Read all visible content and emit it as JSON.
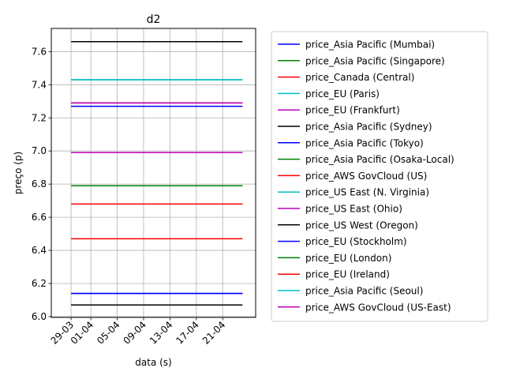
{
  "chart_data": {
    "type": "line",
    "title": "d2",
    "xlabel": "data (s)",
    "ylabel": "preço (p)",
    "ylim": [
      5.995,
      7.74
    ],
    "xlim": [
      "2023-03-26",
      "2023-04-26"
    ],
    "grid": true,
    "legend_position": "outside-right",
    "x_ticks": [
      {
        "date": "2023-03-29",
        "label": "29-03"
      },
      {
        "date": "2023-04-01",
        "label": "01-04"
      },
      {
        "date": "2023-04-05",
        "label": "05-04"
      },
      {
        "date": "2023-04-09",
        "label": "09-04"
      },
      {
        "date": "2023-04-13",
        "label": "13-04"
      },
      {
        "date": "2023-04-17",
        "label": "17-04"
      },
      {
        "date": "2023-04-21",
        "label": "21-04"
      }
    ],
    "y_ticks": [
      "6.0",
      "6.2",
      "6.4",
      "6.6",
      "6.8",
      "7.0",
      "7.2",
      "7.4",
      "7.6"
    ],
    "x": [
      "2023-03-29",
      "2023-04-24"
    ],
    "series": [
      {
        "name": "price_Asia Pacific (Mumbai)",
        "color": "#0000ff",
        "values": [
          7.27,
          7.27
        ]
      },
      {
        "name": "price_Asia Pacific (Singapore)",
        "color": "#008000",
        "values": [
          6.79,
          6.79
        ]
      },
      {
        "name": "price_Canada (Central)",
        "color": "#ff0000",
        "values": [
          7.29,
          7.29
        ]
      },
      {
        "name": "price_EU (Paris)",
        "color": "#00bfbf",
        "values": [
          7.43,
          7.43
        ]
      },
      {
        "name": "price_EU (Frankfurt)",
        "color": "#bf00bf",
        "values": [
          7.29,
          7.29
        ]
      },
      {
        "name": "price_Asia Pacific (Sydney)",
        "color": "#000000",
        "values": [
          7.66,
          7.66
        ]
      },
      {
        "name": "price_Asia Pacific (Tokyo)",
        "color": "#0000ff",
        "values": [
          6.14,
          6.14
        ]
      },
      {
        "name": "price_Asia Pacific (Osaka-Local)",
        "color": "#008000",
        "values": [
          6.79,
          6.79
        ]
      },
      {
        "name": "price_AWS GovCloud (US)",
        "color": "#ff0000",
        "values": [
          6.68,
          6.68
        ]
      },
      {
        "name": "price_US East (N. Virginia)",
        "color": "#00bfbf",
        "values": [
          6.79,
          6.79
        ]
      },
      {
        "name": "price_US East (Ohio)",
        "color": "#bf00bf",
        "values": [
          6.99,
          6.99
        ]
      },
      {
        "name": "price_US West (Oregon)",
        "color": "#000000",
        "values": [
          6.07,
          6.07
        ]
      },
      {
        "name": "price_EU (Stockholm)",
        "color": "#0000ff",
        "values": [
          6.14,
          6.14
        ]
      },
      {
        "name": "price_EU (London)",
        "color": "#008000",
        "values": [
          6.79,
          6.79
        ]
      },
      {
        "name": "price_EU (Ireland)",
        "color": "#ff0000",
        "values": [
          6.47,
          6.47
        ]
      },
      {
        "name": "price_Asia Pacific (Seoul)",
        "color": "#00bfbf",
        "values": [
          7.43,
          7.43
        ]
      },
      {
        "name": "price_AWS GovCloud (US-East)",
        "color": "#bf00bf",
        "values": [
          6.99,
          6.99
        ]
      }
    ]
  }
}
